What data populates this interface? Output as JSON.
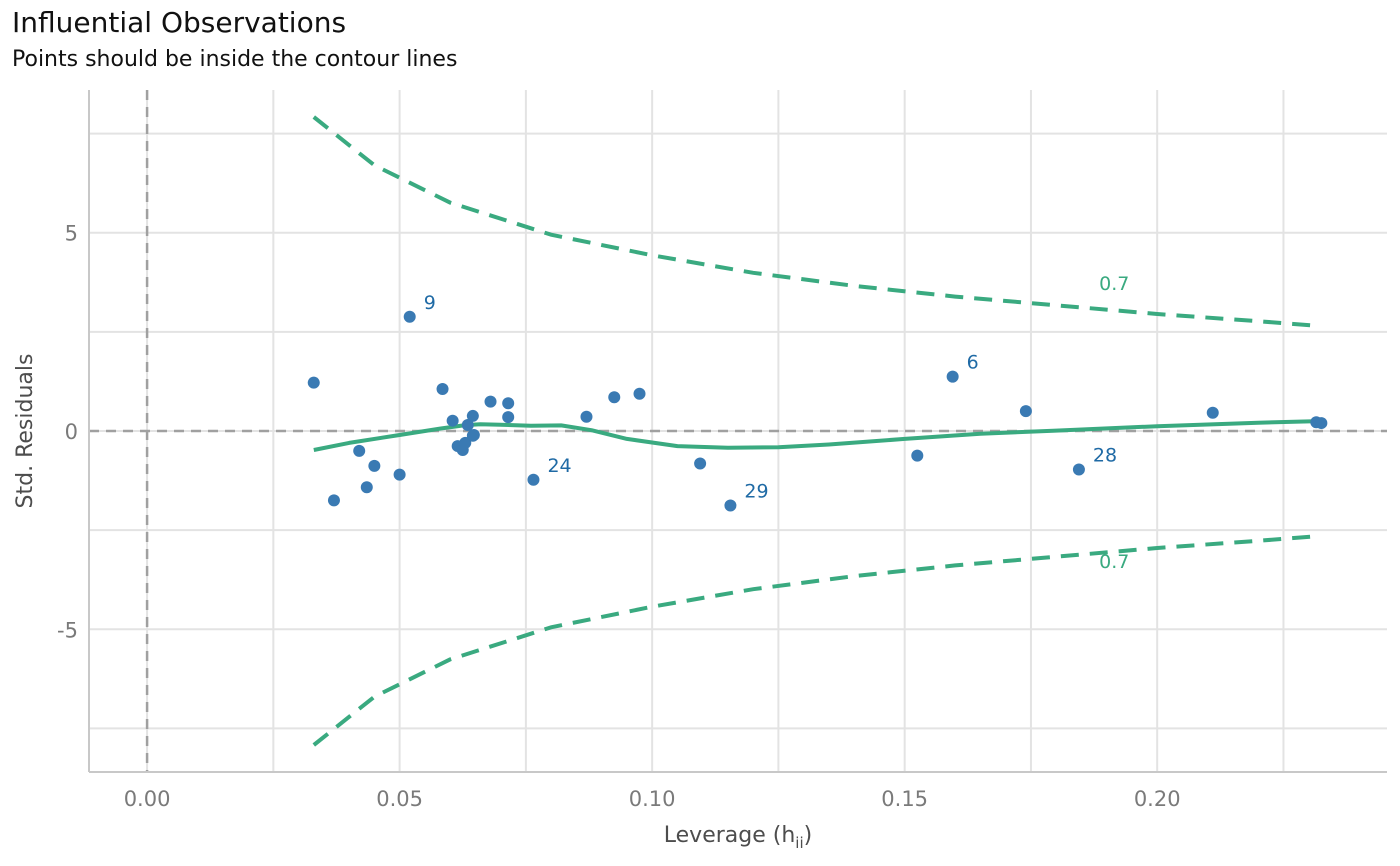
{
  "title": "Influential Observations",
  "subtitle": "Points should be inside the contour lines",
  "chart_data": {
    "type": "scatter",
    "xlabel": "Leverage (h",
    "xlabel_subscript": "ii",
    "xlabel_close": ")",
    "ylabel": "Std. Residuals",
    "xlim": [
      -0.0115,
      0.2455
    ],
    "ylim": [
      -8.6,
      8.6
    ],
    "x_ticks": [
      0.0,
      0.05,
      0.1,
      0.15,
      0.2
    ],
    "x_tick_labels": [
      "0.00",
      "0.05",
      "0.10",
      "0.15",
      "0.20"
    ],
    "x_minor_ticks": [
      0.025,
      0.075,
      0.125,
      0.175,
      0.225
    ],
    "y_ticks": [
      -5,
      0,
      5
    ],
    "y_tick_labels": [
      "-5",
      "0",
      "5"
    ],
    "y_minor_ticks": [
      -7.5,
      -2.5,
      2.5,
      7.5
    ],
    "grid": true,
    "colors": {
      "points": "#3a7ab3",
      "point_labels": "#1f6aa5",
      "smooth": "#3aaa80",
      "contour": "#3aaa80",
      "reference": "#a0a0a0",
      "grid": "#e3e3e3",
      "axis": "#c8c8c8"
    },
    "points": [
      {
        "x": 0.033,
        "y": 1.22
      },
      {
        "x": 0.037,
        "y": -1.75
      },
      {
        "x": 0.042,
        "y": -0.5
      },
      {
        "x": 0.0435,
        "y": -1.42
      },
      {
        "x": 0.045,
        "y": -0.88
      },
      {
        "x": 0.05,
        "y": -1.1
      },
      {
        "x": 0.052,
        "y": 2.88,
        "label": "9"
      },
      {
        "x": 0.0585,
        "y": 1.06
      },
      {
        "x": 0.0605,
        "y": 0.26
      },
      {
        "x": 0.0615,
        "y": -0.38
      },
      {
        "x": 0.0625,
        "y": -0.48
      },
      {
        "x": 0.063,
        "y": -0.3
      },
      {
        "x": 0.0635,
        "y": 0.15
      },
      {
        "x": 0.0645,
        "y": 0.38
      },
      {
        "x": 0.0645,
        "y": -0.12
      },
      {
        "x": 0.0647,
        "y": -0.1
      },
      {
        "x": 0.068,
        "y": 0.74
      },
      {
        "x": 0.0715,
        "y": 0.7
      },
      {
        "x": 0.0715,
        "y": 0.35
      },
      {
        "x": 0.0765,
        "y": -1.23,
        "label": "24"
      },
      {
        "x": 0.087,
        "y": 0.36
      },
      {
        "x": 0.0925,
        "y": 0.85
      },
      {
        "x": 0.0975,
        "y": 0.94
      },
      {
        "x": 0.1095,
        "y": -0.82
      },
      {
        "x": 0.1155,
        "y": -1.88,
        "label": "29"
      },
      {
        "x": 0.1525,
        "y": -0.62
      },
      {
        "x": 0.1595,
        "y": 1.37,
        "label": "6"
      },
      {
        "x": 0.174,
        "y": 0.5
      },
      {
        "x": 0.1845,
        "y": -0.97,
        "label": "28"
      },
      {
        "x": 0.211,
        "y": 0.46
      },
      {
        "x": 0.2315,
        "y": 0.22
      },
      {
        "x": 0.2325,
        "y": 0.2
      }
    ],
    "smooth_line": {
      "x": [
        0.033,
        0.04,
        0.05,
        0.058,
        0.063,
        0.066,
        0.07,
        0.076,
        0.082,
        0.088,
        0.095,
        0.105,
        0.115,
        0.125,
        0.135,
        0.15,
        0.165,
        0.18,
        0.2,
        0.22,
        0.232
      ],
      "y": [
        -0.48,
        -0.3,
        -0.1,
        0.06,
        0.15,
        0.17,
        0.16,
        0.13,
        0.14,
        0.02,
        -0.2,
        -0.38,
        -0.42,
        -0.41,
        -0.34,
        -0.2,
        -0.07,
        0.01,
        0.12,
        0.21,
        0.25
      ]
    },
    "contours": [
      {
        "label": "0.7",
        "x": [
          0.033,
          0.045,
          0.06,
          0.08,
          0.1,
          0.12,
          0.14,
          0.16,
          0.18,
          0.2,
          0.22,
          0.232
        ],
        "y": [
          7.92,
          6.7,
          5.76,
          4.95,
          4.43,
          3.99,
          3.66,
          3.39,
          3.17,
          2.95,
          2.77,
          2.65
        ],
        "label_x": 0.1885,
        "label_y": 3.55
      },
      {
        "label": "0.7",
        "x": [
          0.033,
          0.045,
          0.06,
          0.08,
          0.1,
          0.12,
          0.14,
          0.16,
          0.18,
          0.2,
          0.22,
          0.232
        ],
        "y": [
          -7.92,
          -6.7,
          -5.76,
          -4.95,
          -4.43,
          -3.99,
          -3.66,
          -3.39,
          -3.17,
          -2.95,
          -2.77,
          -2.65
        ],
        "label_x": 0.1885,
        "label_y": -3.45
      }
    ]
  }
}
